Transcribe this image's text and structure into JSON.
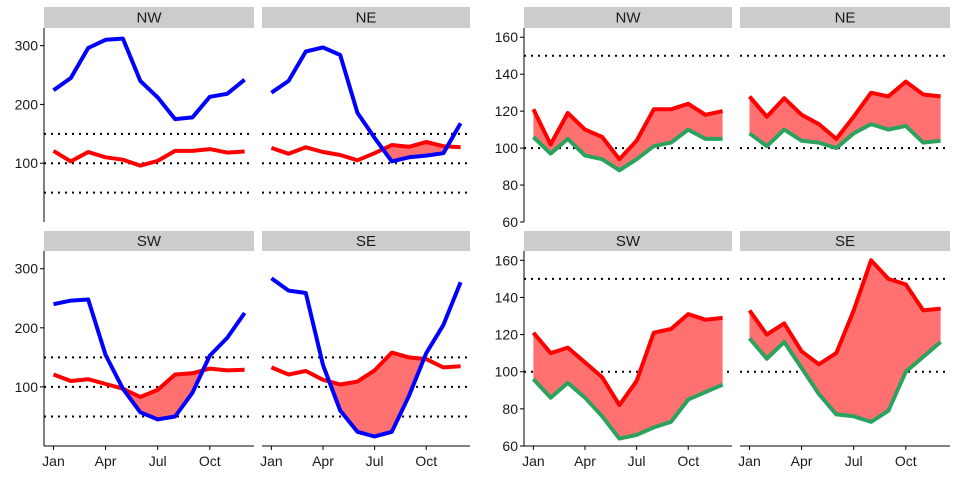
{
  "chart_data": {
    "type": "line",
    "categories": [
      "Jan",
      "Feb",
      "Mar",
      "Apr",
      "May",
      "Jun",
      "Jul",
      "Aug",
      "Sep",
      "Oct",
      "Nov",
      "Dec"
    ],
    "x_tick_labels": [
      "Jan",
      "Apr",
      "Jul",
      "Oct"
    ],
    "colors": {
      "blue_series": "#0000ff",
      "red_series": "#ff0000",
      "green_series": "#2ca25f",
      "fill": "#ff7070",
      "strip": "#cccccc"
    },
    "left": {
      "ylim": [
        0,
        330
      ],
      "y_ticks": [
        "100",
        "200",
        "300"
      ],
      "reference_lines": [
        50,
        100,
        150
      ],
      "panels": [
        {
          "label": "NW",
          "blue": [
            224,
            245,
            296,
            310,
            312,
            240,
            212,
            175,
            178,
            213,
            218,
            242
          ],
          "red": [
            121,
            103,
            119,
            110,
            106,
            96,
            104,
            121,
            121,
            124,
            118,
            120
          ]
        },
        {
          "label": "NE",
          "blue": [
            220,
            240,
            290,
            297,
            284,
            186,
            143,
            103,
            110,
            113,
            117,
            168
          ],
          "red": [
            126,
            116,
            127,
            119,
            114,
            105,
            117,
            131,
            128,
            136,
            129,
            127
          ]
        },
        {
          "label": "SW",
          "blue": [
            240,
            246,
            248,
            154,
            97,
            57,
            45,
            50,
            90,
            153,
            183,
            225
          ],
          "red": [
            121,
            110,
            113,
            105,
            97,
            83,
            95,
            121,
            123,
            131,
            128,
            129
          ]
        },
        {
          "label": "SE",
          "blue": [
            284,
            263,
            259,
            137,
            60,
            24,
            16,
            24,
            85,
            157,
            205,
            277
          ],
          "red": [
            133,
            121,
            127,
            112,
            104,
            109,
            128,
            158,
            150,
            147,
            133,
            135
          ]
        }
      ]
    },
    "right": {
      "ylim": [
        60,
        165
      ],
      "y_ticks": [
        "60",
        "80",
        "100",
        "120",
        "140",
        "160"
      ],
      "reference_lines": [
        100,
        150
      ],
      "panels": [
        {
          "label": "NW",
          "red": [
            121,
            102,
            119,
            110,
            106,
            94,
            104,
            121,
            121,
            124,
            118,
            120
          ],
          "green": [
            106,
            97,
            105,
            96,
            94,
            88,
            94,
            101,
            103,
            110,
            105,
            105
          ]
        },
        {
          "label": "NE",
          "red": [
            128,
            117,
            127,
            118,
            113,
            105,
            117,
            130,
            128,
            136,
            129,
            128
          ],
          "green": [
            108,
            101,
            110,
            104,
            103,
            100,
            108,
            113,
            110,
            112,
            103,
            104
          ]
        },
        {
          "label": "SW",
          "red": [
            121,
            110,
            113,
            105,
            97,
            82,
            95,
            121,
            123,
            131,
            128,
            129
          ],
          "green": [
            96,
            86,
            94,
            86,
            76,
            64,
            66,
            70,
            73,
            85,
            89,
            93
          ]
        },
        {
          "label": "SE",
          "red": [
            133,
            120,
            126,
            111,
            104,
            110,
            133,
            160,
            150,
            147,
            133,
            134
          ],
          "green": [
            118,
            107,
            116,
            102,
            88,
            77,
            76,
            73,
            79,
            100,
            108,
            116
          ]
        }
      ]
    }
  }
}
